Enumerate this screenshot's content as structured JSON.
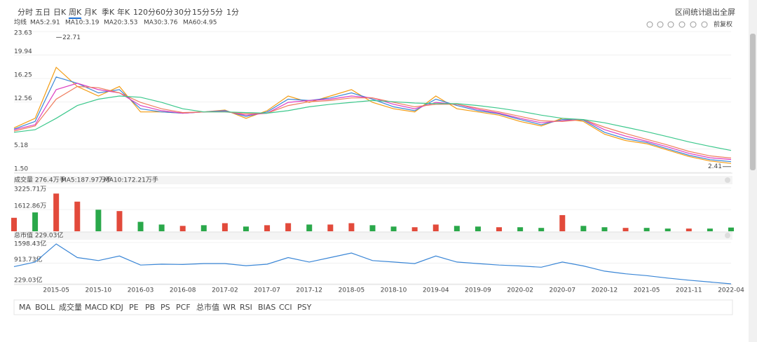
{
  "toolbar": {
    "periods": [
      "分时",
      "五日",
      "日K",
      "周K",
      "月K",
      "季K",
      "年K",
      "120分",
      "60分",
      "30分",
      "15分",
      "5分",
      "1分"
    ],
    "active": 3,
    "actions": [
      "区间统计",
      "退出全屏"
    ]
  },
  "adjust": "前复权",
  "chart_data": [
    {
      "type": "line",
      "title": "均线",
      "series": [
        {
          "name": "MA5:2.91",
          "color": "#f39c12",
          "values": [
            8.5,
            10,
            18,
            15,
            13.5,
            15,
            11,
            11,
            10.8,
            11,
            11.3,
            10,
            11.2,
            13.5,
            12.5,
            13.5,
            14.5,
            12.5,
            11.5,
            11,
            13.5,
            11.5,
            11,
            10.5,
            9.5,
            8.8,
            10,
            9.5,
            7.5,
            6.5,
            6,
            5,
            4,
            3.3,
            2.91
          ]
        },
        {
          "name": "MA10:3.19",
          "color": "#3a86d6",
          "values": [
            8.3,
            9.5,
            16.5,
            15.5,
            14,
            14.5,
            11.5,
            11,
            10.8,
            11,
            11.2,
            10.3,
            11,
            13,
            12.8,
            13.2,
            14,
            13,
            11.8,
            11.2,
            13,
            12,
            11.2,
            10.7,
            9.8,
            9,
            9.8,
            9.7,
            7.8,
            6.8,
            6.2,
            5.2,
            4.2,
            3.5,
            3.19
          ]
        },
        {
          "name": "MA20:3.53",
          "color": "#dd3fc0",
          "values": [
            8.2,
            9,
            14.5,
            15.5,
            14.5,
            14,
            12,
            11.2,
            10.8,
            11,
            11.1,
            10.5,
            10.8,
            12.5,
            12.8,
            13,
            13.5,
            13.2,
            12.2,
            11.5,
            12.5,
            12.2,
            11.4,
            10.8,
            10,
            9.3,
            9.6,
            9.8,
            8.2,
            7.2,
            6.4,
            5.5,
            4.5,
            3.8,
            3.53
          ]
        },
        {
          "name": "MA30:3.76",
          "color": "#ef7d5e",
          "values": [
            8,
            8.8,
            13,
            15,
            14.8,
            14,
            12.5,
            11.5,
            10.9,
            11,
            11,
            10.7,
            10.8,
            12,
            12.6,
            12.8,
            13.2,
            13.2,
            12.5,
            11.8,
            12.2,
            12.2,
            11.6,
            11,
            10.3,
            9.6,
            9.5,
            9.8,
            8.6,
            7.6,
            6.7,
            5.8,
            4.8,
            4.1,
            3.76
          ]
        },
        {
          "name": "MA60:4.95",
          "color": "#3cc88c",
          "values": [
            7.8,
            8.2,
            10,
            12,
            13,
            13.5,
            13.3,
            12.5,
            11.5,
            11,
            11,
            10.9,
            10.8,
            11.2,
            11.8,
            12.2,
            12.5,
            12.8,
            12.6,
            12.4,
            12.3,
            12.3,
            12,
            11.6,
            11.1,
            10.5,
            10,
            9.8,
            9.3,
            8.6,
            7.9,
            7.1,
            6.3,
            5.6,
            4.95
          ]
        }
      ],
      "ylim": [
        1.5,
        23.63
      ],
      "yticks": [
        {
          "value": 1.5,
          "label": "1.50"
        },
        5.18,
        12.56,
        16.25,
        19.94,
        23.63
      ],
      "annotations": [
        {
          "index": 2,
          "value": 22.71
        },
        {
          "index": 34,
          "value": 2.41
        }
      ]
    },
    {
      "type": "bar",
      "title": "成交量 276.4万手",
      "legend": [
        {
          "name": "MA5:187.97万手",
          "color": "#f39c12"
        },
        {
          "name": "MA10:172.21万手",
          "color": "#3a86d6"
        }
      ],
      "values": [
        1000,
        1400,
        2800,
        2200,
        1600,
        1500,
        700,
        500,
        400,
        450,
        600,
        350,
        450,
        600,
        500,
        500,
        600,
        450,
        350,
        300,
        500,
        400,
        350,
        300,
        300,
        250,
        1200,
        400,
        300,
        250,
        250,
        200,
        200,
        200,
        276.4
      ],
      "colors": [
        "#e24a3b",
        "#2aa84a",
        "#e24a3b",
        "#e24a3b",
        "#2aa84a",
        "#e24a3b",
        "#2aa84a",
        "#2aa84a",
        "#e24a3b",
        "#2aa84a",
        "#e24a3b",
        "#2aa84a",
        "#e24a3b",
        "#e24a3b",
        "#2aa84a",
        "#e24a3b",
        "#e24a3b",
        "#2aa84a",
        "#2aa84a",
        "#e24a3b",
        "#e24a3b",
        "#2aa84a",
        "#2aa84a",
        "#e24a3b",
        "#2aa84a",
        "#2aa84a",
        "#e24a3b",
        "#2aa84a",
        "#2aa84a",
        "#e24a3b",
        "#2aa84a",
        "#2aa84a",
        "#e24a3b",
        "#2aa84a",
        "#2aa84a"
      ],
      "ylim": [
        0,
        3225.71
      ],
      "yticks": [
        {
          "value": 1612.86,
          "label": "1612.86万"
        },
        {
          "value": 3225.71,
          "label": "3225.71万"
        }
      ]
    },
    {
      "type": "line",
      "title": "总市值 229.03亿",
      "series": [
        {
          "color": "#3a86d6",
          "values": [
            800,
            950,
            1550,
            1100,
            1000,
            1150,
            850,
            880,
            870,
            900,
            900,
            830,
            880,
            1100,
            950,
            1100,
            1250,
            1000,
            950,
            900,
            1150,
            950,
            900,
            850,
            820,
            780,
            950,
            820,
            650,
            560,
            500,
            420,
            350,
            290,
            229.03
          ]
        }
      ],
      "ylim": [
        229.03,
        1598.43
      ],
      "yticks": [
        {
          "value": 229.03,
          "label": "229.03亿"
        },
        {
          "value": 913.73,
          "label": "913.73亿"
        },
        {
          "value": 1598.43,
          "label": "1598.43亿"
        }
      ],
      "categories": [
        null,
        null,
        "2015-05",
        null,
        "2015-10",
        null,
        "2016-03",
        null,
        "2016-08",
        null,
        "2017-02",
        null,
        "2017-07",
        null,
        "2017-12",
        null,
        "2018-05",
        null,
        "2018-10",
        null,
        "2019-04",
        null,
        "2019-09",
        null,
        "2020-02",
        null,
        "2020-07",
        null,
        "2020-12",
        null,
        "2021-05",
        null,
        "2021-11",
        null,
        "2022-04"
      ]
    }
  ],
  "indicators": {
    "items": [
      "MA",
      "BOLL",
      "成交量",
      "MACD",
      "KDJ",
      "PE",
      "PB",
      "PS",
      "PCF",
      "总市值",
      "WR",
      "RSI",
      "BIAS",
      "CCI",
      "PSY"
    ],
    "active": [
      0,
      2,
      9
    ]
  }
}
